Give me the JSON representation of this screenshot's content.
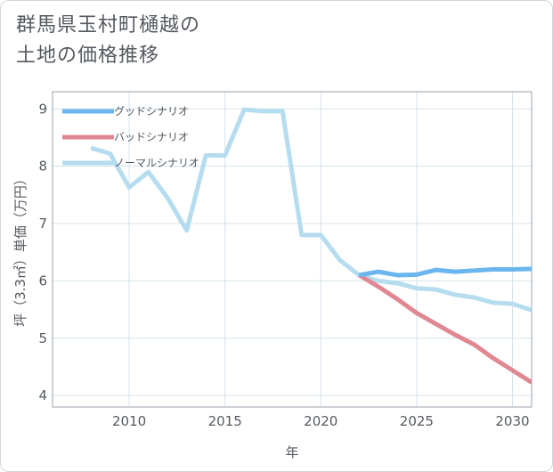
{
  "title": {
    "line1": "群馬県玉村町樋越の",
    "line2": "土地の価格推移"
  },
  "chart_data": {
    "type": "line",
    "title": "群馬県玉村町樋越の土地の価格推移",
    "xlabel": "年",
    "ylabel": "坪（3.3㎡）単価（万円）",
    "xlim": [
      2006,
      2031
    ],
    "ylim": [
      3.8,
      9.3
    ],
    "xticks": [
      "2010",
      "2015",
      "2020",
      "2025",
      "2030"
    ],
    "yticks": [
      "4",
      "5",
      "6",
      "7",
      "8",
      "9"
    ],
    "series": [
      {
        "name": "グッドシナリオ",
        "color": "#6bb6ee",
        "x": [
          2022,
          2023,
          2024,
          2025,
          2026,
          2027,
          2028,
          2029,
          2030,
          2031
        ],
        "values": [
          6.1,
          6.16,
          6.1,
          6.11,
          6.19,
          6.16,
          6.18,
          6.2,
          6.2,
          6.21
        ]
      },
      {
        "name": "バッドシナリオ",
        "color": "#e08892",
        "x": [
          2022,
          2023,
          2024,
          2025,
          2026,
          2027,
          2028,
          2029,
          2030,
          2031
        ],
        "values": [
          6.1,
          5.9,
          5.68,
          5.44,
          5.25,
          5.06,
          4.89,
          4.65,
          4.44,
          4.23
        ]
      },
      {
        "name": "ノーマルシナリオ",
        "color": "#b5dcef",
        "x": [
          2008,
          2009,
          2010,
          2011,
          2012,
          2013,
          2014,
          2015,
          2016,
          2017,
          2018,
          2019,
          2020,
          2021,
          2022,
          2023,
          2024,
          2025,
          2026,
          2027,
          2028,
          2029,
          2030,
          2031
        ],
        "values": [
          8.32,
          8.22,
          7.63,
          7.9,
          7.45,
          6.88,
          8.19,
          8.19,
          8.99,
          8.96,
          8.96,
          6.8,
          6.8,
          6.36,
          6.1,
          6.0,
          5.96,
          5.87,
          5.85,
          5.76,
          5.71,
          5.62,
          5.6,
          5.49
        ]
      }
    ],
    "legend": "top-left",
    "grid": true
  }
}
